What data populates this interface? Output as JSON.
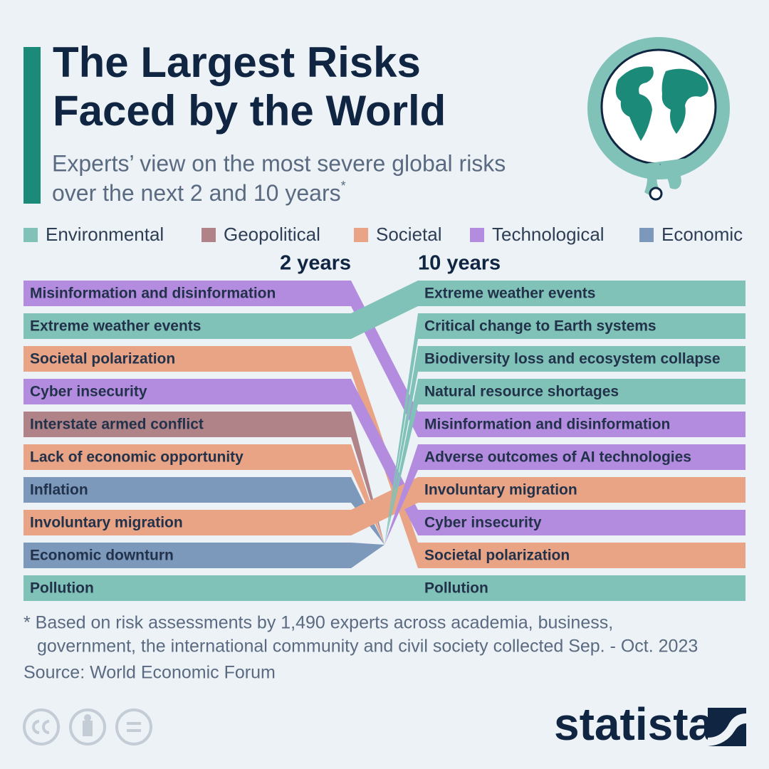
{
  "header": {
    "title_lines": [
      "The Largest Risks",
      "Faced by the World"
    ],
    "subtitle_lines": [
      "Experts’ view on the most severe global risks",
      "over the next 2 and 10 years"
    ],
    "subtitle_mark": "*"
  },
  "chart_data": {
    "type": "bump",
    "legend": [
      {
        "name": "Environmental",
        "color": "#80c1b8"
      },
      {
        "name": "Geopolitical",
        "color": "#b08389"
      },
      {
        "name": "Societal",
        "color": "#e9a385"
      },
      {
        "name": "Technological",
        "color": "#b38ce0"
      },
      {
        "name": "Economic",
        "color": "#7c98bb"
      }
    ],
    "columns": [
      {
        "label": "2 years",
        "items": [
          {
            "name": "Misinformation and disinformation",
            "category": "Technological"
          },
          {
            "name": "Extreme weather events",
            "category": "Environmental"
          },
          {
            "name": "Societal polarization",
            "category": "Societal"
          },
          {
            "name": "Cyber insecurity",
            "category": "Technological"
          },
          {
            "name": "Interstate armed conflict",
            "category": "Geopolitical"
          },
          {
            "name": "Lack of economic opportunity",
            "category": "Societal"
          },
          {
            "name": "Inflation",
            "category": "Economic"
          },
          {
            "name": "Involuntary migration",
            "category": "Societal"
          },
          {
            "name": "Economic downturn",
            "category": "Economic"
          },
          {
            "name": "Pollution",
            "category": "Environmental"
          }
        ]
      },
      {
        "label": "10 years",
        "items": [
          {
            "name": "Extreme weather events",
            "category": "Environmental"
          },
          {
            "name": "Critical change to Earth systems",
            "category": "Environmental"
          },
          {
            "name": "Biodiversity loss and ecosystem collapse",
            "category": "Environmental"
          },
          {
            "name": "Natural resource shortages",
            "category": "Environmental"
          },
          {
            "name": "Misinformation and disinformation",
            "category": "Technological"
          },
          {
            "name": "Adverse outcomes of AI technologies",
            "category": "Technological"
          },
          {
            "name": "Involuntary migration",
            "category": "Societal"
          },
          {
            "name": "Cyber insecurity",
            "category": "Technological"
          },
          {
            "name": "Societal polarization",
            "category": "Societal"
          },
          {
            "name": "Pollution",
            "category": "Environmental"
          }
        ]
      }
    ]
  },
  "footer": {
    "note_lines": [
      "* Based on risk assessments by 1,490 experts across academia, business,",
      "government, the international community and civil society collected Sep. - Oct. 2023"
    ],
    "source": "Source: World Economic Forum",
    "brand": "statista"
  }
}
